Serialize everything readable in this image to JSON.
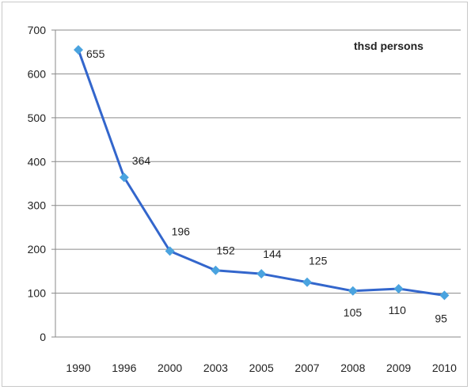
{
  "chart_data": {
    "type": "line",
    "categories": [
      "1990",
      "1996",
      "2000",
      "2003",
      "2005",
      "2007",
      "2008",
      "2009",
      "2010"
    ],
    "values": [
      655,
      364,
      196,
      152,
      144,
      125,
      105,
      110,
      95
    ],
    "data_labels": [
      "655",
      "364",
      "196",
      "152",
      "144",
      "125",
      "105",
      "110",
      "95"
    ],
    "unit_label": "thsd persons",
    "ylim": [
      0,
      700
    ],
    "yticks": [
      0,
      100,
      200,
      300,
      400,
      500,
      600,
      700
    ],
    "ytick_labels": [
      "0",
      "100",
      "200",
      "300",
      "400",
      "500",
      "600",
      "700"
    ],
    "grid": true,
    "line_color": "#3366CC",
    "marker_color": "#4AA3DF",
    "marker": "diamond"
  }
}
